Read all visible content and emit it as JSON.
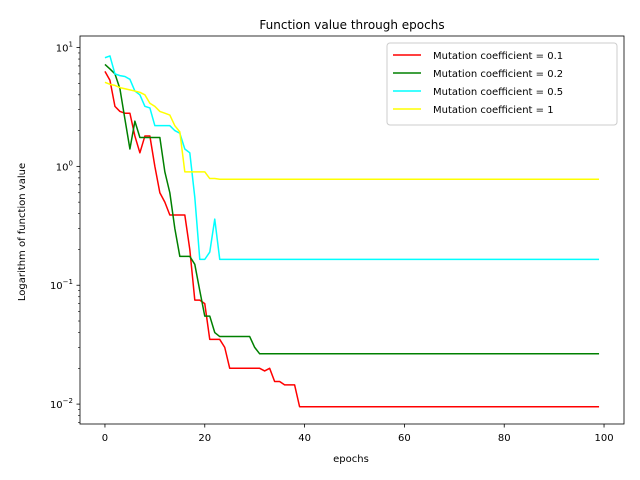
{
  "chart_data": {
    "type": "line",
    "title": "Function value  through epochs",
    "xlabel": "epochs",
    "ylabel": "Logarithm of function value",
    "yscale": "log",
    "xlim": [
      -5,
      104
    ],
    "ylim": [
      0.0068,
      12.5
    ],
    "xticks": [
      0,
      20,
      40,
      60,
      80,
      100
    ],
    "xtick_labels": [
      "0",
      "20",
      "40",
      "60",
      "80",
      "100"
    ],
    "yticks": [
      0.01,
      0.1,
      1,
      10
    ],
    "ytick_labels": [
      "10",
      "10",
      "10",
      "10"
    ],
    "ytick_exponents": [
      "−2",
      "−1",
      "0",
      "1"
    ],
    "grid": false,
    "legend_position": "upper right",
    "series": [
      {
        "name": "Mutation coefficient = 0.1",
        "color": "#ff0000",
        "points": [
          [
            0,
            6.3
          ],
          [
            1,
            5.3
          ],
          [
            2,
            3.2
          ],
          [
            3,
            2.9
          ],
          [
            4,
            2.8
          ],
          [
            5,
            2.8
          ],
          [
            6,
            1.8
          ],
          [
            7,
            1.3
          ],
          [
            8,
            1.8
          ],
          [
            9,
            1.8
          ],
          [
            10,
            1.0
          ],
          [
            11,
            0.6
          ],
          [
            12,
            0.5
          ],
          [
            13,
            0.39
          ],
          [
            14,
            0.39
          ],
          [
            15,
            0.39
          ],
          [
            16,
            0.39
          ],
          [
            17,
            0.2
          ],
          [
            18,
            0.075
          ],
          [
            19,
            0.075
          ],
          [
            20,
            0.07
          ],
          [
            21,
            0.035
          ],
          [
            22,
            0.035
          ],
          [
            23,
            0.035
          ],
          [
            24,
            0.03
          ],
          [
            25,
            0.02
          ],
          [
            26,
            0.02
          ],
          [
            30,
            0.02
          ],
          [
            31,
            0.02
          ],
          [
            32,
            0.019
          ],
          [
            33,
            0.02
          ],
          [
            34,
            0.0155
          ],
          [
            35,
            0.0155
          ],
          [
            36,
            0.0145
          ],
          [
            37,
            0.0145
          ],
          [
            38,
            0.0145
          ],
          [
            39,
            0.0095
          ],
          [
            99,
            0.0095
          ]
        ]
      },
      {
        "name": "Mutation coefficient = 0.2",
        "color": "#008000",
        "points": [
          [
            0,
            7.2
          ],
          [
            1,
            6.6
          ],
          [
            2,
            6.0
          ],
          [
            3,
            4.5
          ],
          [
            4,
            2.5
          ],
          [
            5,
            1.4
          ],
          [
            6,
            2.4
          ],
          [
            7,
            1.75
          ],
          [
            8,
            1.75
          ],
          [
            9,
            1.75
          ],
          [
            10,
            1.75
          ],
          [
            11,
            1.75
          ],
          [
            12,
            0.9
          ],
          [
            13,
            0.6
          ],
          [
            14,
            0.3
          ],
          [
            15,
            0.175
          ],
          [
            16,
            0.175
          ],
          [
            17,
            0.175
          ],
          [
            18,
            0.15
          ],
          [
            19,
            0.09
          ],
          [
            20,
            0.055
          ],
          [
            21,
            0.055
          ],
          [
            22,
            0.04
          ],
          [
            23,
            0.037
          ],
          [
            24,
            0.037
          ],
          [
            25,
            0.037
          ],
          [
            26,
            0.037
          ],
          [
            27,
            0.037
          ],
          [
            28,
            0.037
          ],
          [
            29,
            0.037
          ],
          [
            30,
            0.03
          ],
          [
            31,
            0.0265
          ],
          [
            99,
            0.0265
          ]
        ]
      },
      {
        "name": "Mutation coefficient = 0.5",
        "color": "#00ffff",
        "points": [
          [
            0,
            8.2
          ],
          [
            1,
            8.5
          ],
          [
            2,
            6.0
          ],
          [
            3,
            5.8
          ],
          [
            4,
            5.7
          ],
          [
            5,
            5.4
          ],
          [
            6,
            4.3
          ],
          [
            7,
            4.0
          ],
          [
            8,
            3.2
          ],
          [
            9,
            3.1
          ],
          [
            10,
            2.2
          ],
          [
            11,
            2.2
          ],
          [
            12,
            2.2
          ],
          [
            13,
            2.2
          ],
          [
            14,
            2.0
          ],
          [
            15,
            1.9
          ],
          [
            16,
            1.4
          ],
          [
            17,
            1.3
          ],
          [
            18,
            0.55
          ],
          [
            19,
            0.165
          ],
          [
            20,
            0.165
          ],
          [
            21,
            0.19
          ],
          [
            22,
            0.36
          ],
          [
            23,
            0.165
          ],
          [
            99,
            0.165
          ]
        ]
      },
      {
        "name": "Mutation coefficient = 1",
        "color": "#ffff00",
        "points": [
          [
            0,
            5.1
          ],
          [
            1,
            4.9
          ],
          [
            2,
            4.8
          ],
          [
            3,
            4.6
          ],
          [
            4,
            4.5
          ],
          [
            5,
            4.4
          ],
          [
            6,
            4.3
          ],
          [
            7,
            4.2
          ],
          [
            8,
            4.0
          ],
          [
            9,
            3.4
          ],
          [
            10,
            3.2
          ],
          [
            11,
            2.9
          ],
          [
            12,
            2.8
          ],
          [
            13,
            2.7
          ],
          [
            14,
            2.2
          ],
          [
            15,
            1.95
          ],
          [
            16,
            0.9
          ],
          [
            17,
            0.9
          ],
          [
            18,
            0.9
          ],
          [
            19,
            0.9
          ],
          [
            20,
            0.9
          ],
          [
            21,
            0.79
          ],
          [
            22,
            0.79
          ],
          [
            23,
            0.78
          ],
          [
            99,
            0.78
          ]
        ]
      }
    ]
  }
}
